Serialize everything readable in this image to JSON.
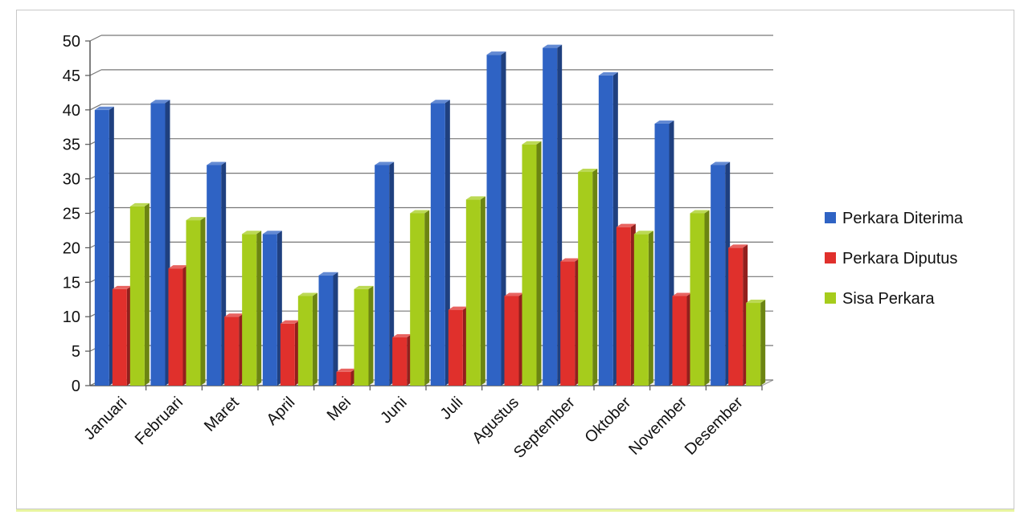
{
  "chart_data": {
    "type": "bar",
    "title": "",
    "xlabel": "",
    "ylabel": "",
    "ylim": [
      0,
      50
    ],
    "yticks": [
      0,
      5,
      10,
      15,
      20,
      25,
      30,
      35,
      40,
      45,
      50
    ],
    "grid": true,
    "legend_position": "right",
    "categories": [
      "Januari",
      "Februari",
      "Maret",
      "April",
      "Mei",
      "Juni",
      "Juli",
      "Agustus",
      "September",
      "Oktober",
      "November",
      "Desember"
    ],
    "series": [
      {
        "name": "Perkara Diterima",
        "color": "#2f63c4",
        "values": [
          40,
          41,
          32,
          22,
          16,
          32,
          41,
          48,
          49,
          45,
          38,
          32
        ]
      },
      {
        "name": "Perkara Diputus",
        "color": "#e0302c",
        "values": [
          14,
          17,
          10,
          9,
          2,
          7,
          11,
          13,
          18,
          23,
          13,
          20
        ]
      },
      {
        "name": "Sisa Perkara",
        "color": "#a6cc1c",
        "values": [
          26,
          24,
          22,
          13,
          14,
          25,
          27,
          35,
          31,
          22,
          25,
          12
        ]
      }
    ]
  }
}
